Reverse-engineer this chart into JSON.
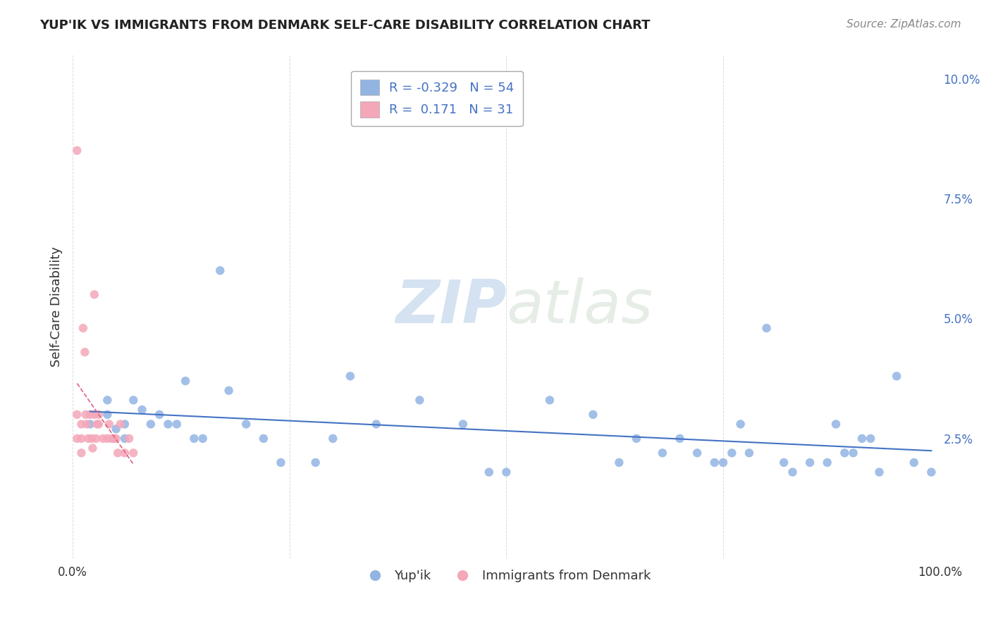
{
  "title": "YUP'IK VS IMMIGRANTS FROM DENMARK SELF-CARE DISABILITY CORRELATION CHART",
  "source_text": "Source: ZipAtlas.com",
  "ylabel": "Self-Care Disability",
  "watermark_zip": "ZIP",
  "watermark_atlas": "atlas",
  "legend_r1": "R = -0.329",
  "legend_n1": "N = 54",
  "legend_r2": "R =  0.171",
  "legend_n2": "N = 31",
  "label1": "Yup'ik",
  "label2": "Immigrants from Denmark",
  "color1": "#92b4e3",
  "color2": "#f4a7b9",
  "line_color1": "#4472c4",
  "line_color2": "#e06080",
  "xlim": [
    0,
    1.0
  ],
  "ylim": [
    0,
    0.105
  ],
  "yticks_right": [
    0,
    0.025,
    0.05,
    0.075,
    0.1
  ],
  "yticklabels_right": [
    "",
    "2.5%",
    "5.0%",
    "7.5%",
    "10.0%"
  ],
  "blue_x": [
    0.02,
    0.04,
    0.04,
    0.05,
    0.06,
    0.06,
    0.07,
    0.08,
    0.09,
    0.1,
    0.11,
    0.12,
    0.13,
    0.14,
    0.15,
    0.17,
    0.18,
    0.2,
    0.22,
    0.24,
    0.28,
    0.3,
    0.32,
    0.35,
    0.4,
    0.45,
    0.48,
    0.5,
    0.55,
    0.6,
    0.63,
    0.65,
    0.68,
    0.7,
    0.72,
    0.74,
    0.75,
    0.76,
    0.77,
    0.78,
    0.8,
    0.82,
    0.83,
    0.85,
    0.87,
    0.88,
    0.89,
    0.9,
    0.91,
    0.92,
    0.93,
    0.95,
    0.97,
    0.99
  ],
  "blue_y": [
    0.028,
    0.03,
    0.033,
    0.027,
    0.028,
    0.025,
    0.033,
    0.031,
    0.028,
    0.03,
    0.028,
    0.028,
    0.037,
    0.025,
    0.025,
    0.06,
    0.035,
    0.028,
    0.025,
    0.02,
    0.02,
    0.025,
    0.038,
    0.028,
    0.033,
    0.028,
    0.018,
    0.018,
    0.033,
    0.03,
    0.02,
    0.025,
    0.022,
    0.025,
    0.022,
    0.02,
    0.02,
    0.022,
    0.028,
    0.022,
    0.048,
    0.02,
    0.018,
    0.02,
    0.02,
    0.028,
    0.022,
    0.022,
    0.025,
    0.025,
    0.018,
    0.038,
    0.02,
    0.018
  ],
  "pink_x": [
    0.005,
    0.005,
    0.005,
    0.01,
    0.01,
    0.01,
    0.012,
    0.014,
    0.015,
    0.016,
    0.018,
    0.02,
    0.022,
    0.023,
    0.025,
    0.025,
    0.027,
    0.028,
    0.03,
    0.03,
    0.035,
    0.04,
    0.042,
    0.045,
    0.048,
    0.05,
    0.052,
    0.055,
    0.06,
    0.065,
    0.07
  ],
  "pink_y": [
    0.085,
    0.03,
    0.025,
    0.028,
    0.025,
    0.022,
    0.048,
    0.043,
    0.03,
    0.028,
    0.025,
    0.03,
    0.025,
    0.023,
    0.055,
    0.03,
    0.025,
    0.028,
    0.03,
    0.028,
    0.025,
    0.025,
    0.028,
    0.025,
    0.025,
    0.025,
    0.022,
    0.028,
    0.022,
    0.025,
    0.022
  ]
}
